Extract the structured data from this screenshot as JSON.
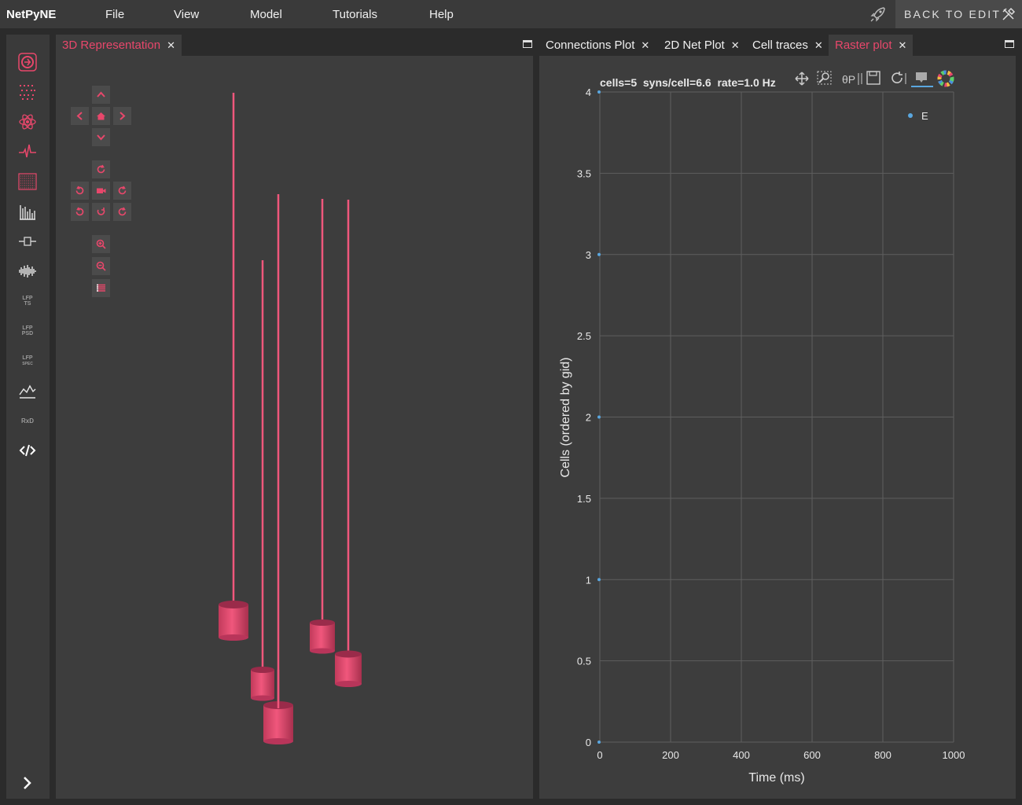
{
  "app": {
    "brand": "NetPyNE"
  },
  "menu": [
    "File",
    "View",
    "Model",
    "Tutorials",
    "Help"
  ],
  "back_button": {
    "label": "BACK TO EDIT"
  },
  "sidebar": {
    "items": [
      {
        "icon": "netpyne-logo-icon"
      },
      {
        "icon": "cells-grid-icon"
      },
      {
        "icon": "atom-icon"
      },
      {
        "icon": "trace-icon"
      },
      {
        "icon": "raster-icon"
      },
      {
        "icon": "histogram-icon"
      },
      {
        "icon": "connector-icon"
      },
      {
        "icon": "spectrum-icon"
      },
      {
        "icon": "lfp-ts-icon",
        "label1": "LFP",
        "label2": "TS"
      },
      {
        "icon": "lfp-psd-icon",
        "label1": "LFP",
        "label2": "PSD"
      },
      {
        "icon": "lfp-spec-icon",
        "label1": "LFP",
        "label2": "SPEC"
      },
      {
        "icon": "line-chart-icon"
      },
      {
        "icon": "rxd-icon",
        "label1": "RxD"
      },
      {
        "icon": "code-icon"
      }
    ]
  },
  "left_panel": {
    "tabs": [
      {
        "label": "3D Representation",
        "active": true
      }
    ]
  },
  "right_panel": {
    "tabs": [
      {
        "label": "Connections Plot",
        "active": false
      },
      {
        "label": "2D Net Plot",
        "active": false
      },
      {
        "label": "Cell traces",
        "active": false
      },
      {
        "label": "Raster plot",
        "active": true
      }
    ]
  },
  "colors": {
    "accent": "#e8476b",
    "series_E": "#5aa7e0",
    "cell": "#d8476b"
  },
  "chart_data": {
    "type": "scatter",
    "title": "cells=5  syns/cell=6.6  rate=1.0 Hz",
    "xlabel": "Time (ms)",
    "ylabel": "Cells (ordered by gid)",
    "xlim": [
      0,
      1000
    ],
    "ylim": [
      0,
      4
    ],
    "x_ticks": [
      "0",
      "200",
      "400",
      "600",
      "800",
      "1000"
    ],
    "y_ticks": [
      "0",
      "0.5",
      "1",
      "1.5",
      "2",
      "2.5",
      "3",
      "3.5",
      "4"
    ],
    "grid": true,
    "legend_position": "top-right",
    "series": [
      {
        "name": "E",
        "points": [
          [
            20,
            0
          ],
          [
            20,
            1
          ],
          [
            20,
            2
          ],
          [
            20,
            3
          ],
          [
            20,
            4
          ]
        ]
      }
    ]
  }
}
